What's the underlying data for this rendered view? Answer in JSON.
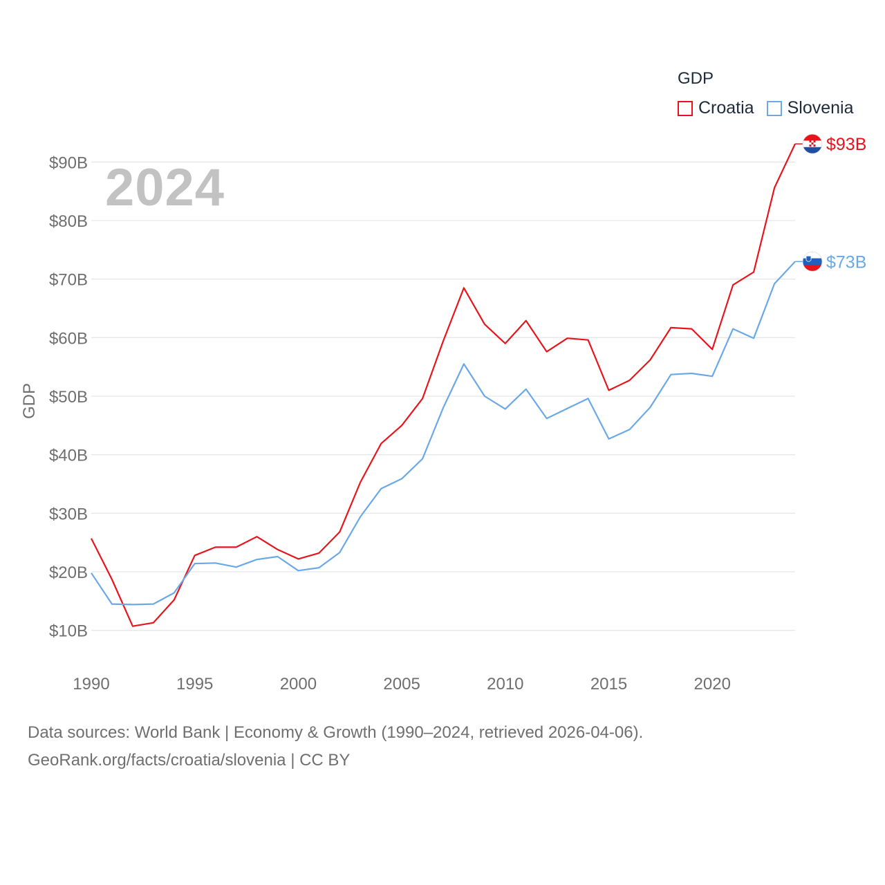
{
  "legend": {
    "title": "GDP",
    "items": [
      {
        "label": "Croatia",
        "color": "#e8141c"
      },
      {
        "label": "Slovenia",
        "color": "#6aa8e6"
      }
    ]
  },
  "year_overlay": "2024",
  "footer": {
    "line1": "Data sources: World Bank | Economy & Growth (1990–2024, retrieved 2026-04-06).",
    "line2": "GeoRank.org/facts/croatia/slovenia | CC BY"
  },
  "chart_data": {
    "type": "line",
    "title": "GDP",
    "xlabel": "",
    "ylabel": "GDP",
    "xlim": [
      1990,
      2024
    ],
    "ylim": [
      5,
      95
    ],
    "x_ticks": [
      1990,
      1995,
      2000,
      2005,
      2010,
      2015,
      2020
    ],
    "y_ticks": [
      10,
      20,
      30,
      40,
      50,
      60,
      70,
      80,
      90
    ],
    "y_tick_labels": [
      "$10B",
      "$20B",
      "$30B",
      "$40B",
      "$50B",
      "$60B",
      "$70B",
      "$80B",
      "$90B"
    ],
    "grid": true,
    "x": [
      1990,
      1991,
      1992,
      1993,
      1994,
      1995,
      1996,
      1997,
      1998,
      1999,
      2000,
      2001,
      2002,
      2003,
      2004,
      2005,
      2006,
      2007,
      2008,
      2009,
      2010,
      2011,
      2012,
      2013,
      2014,
      2015,
      2016,
      2017,
      2018,
      2019,
      2020,
      2021,
      2022,
      2023,
      2024
    ],
    "series": [
      {
        "name": "Croatia",
        "color": "#e8141c",
        "end_label": "$93B",
        "flag": "croatia",
        "values": [
          25.7,
          18.7,
          10.7,
          11.3,
          15.2,
          22.8,
          24.2,
          24.2,
          26.0,
          23.8,
          22.2,
          23.2,
          26.8,
          35.3,
          41.9,
          45.0,
          49.6,
          59.4,
          68.5,
          62.3,
          59.0,
          62.9,
          57.6,
          59.9,
          59.6,
          51.0,
          52.7,
          56.2,
          61.7,
          61.5,
          58.0,
          69.0,
          71.2,
          85.6,
          93.1
        ]
      },
      {
        "name": "Slovenia",
        "color": "#6aa8e6",
        "end_label": "$73B",
        "flag": "slovenia",
        "values": [
          19.8,
          14.5,
          14.4,
          14.5,
          16.4,
          21.4,
          21.5,
          20.8,
          22.1,
          22.6,
          20.2,
          20.7,
          23.3,
          29.4,
          34.2,
          35.9,
          39.3,
          48.0,
          55.5,
          50.0,
          47.8,
          51.2,
          46.2,
          47.9,
          49.6,
          42.7,
          44.3,
          48.1,
          53.7,
          53.9,
          53.4,
          61.5,
          59.9,
          69.2,
          73.0
        ]
      }
    ]
  }
}
